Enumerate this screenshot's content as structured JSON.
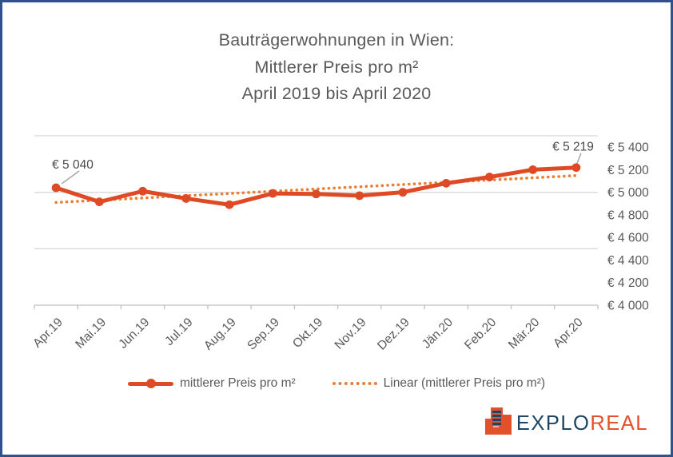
{
  "title": {
    "lines": [
      "Bauträgerwohnungen in Wien:",
      "Mittlerer Preis pro m²",
      "April 2019 bis April 2020"
    ]
  },
  "chart_data": {
    "type": "line",
    "title": "Bauträgerwohnungen in Wien: Mittlerer Preis pro m² April 2019 bis April 2020",
    "categories": [
      "Apr.19",
      "Mai.19",
      "Jun.19",
      "Jul.19",
      "Aug.19",
      "Sep.19",
      "Okt.19",
      "Nov.19",
      "Dez.19",
      "Jän.20",
      "Feb.20",
      "Mär.20",
      "Apr.20"
    ],
    "series": [
      {
        "name": "mittlerer Preis pro m²",
        "type": "line-with-markers",
        "color": "#DE4A26",
        "values": [
          5040,
          4915,
          5010,
          4945,
          4890,
          4990,
          4985,
          4970,
          5000,
          5080,
          5135,
          5200,
          5219
        ]
      },
      {
        "name": "Linear (mittlerer Preis pro m²)",
        "type": "linear-trendline-dotted",
        "color": "#ED7D31",
        "endpoint_values": [
          4910,
          5148
        ]
      }
    ],
    "annotations": [
      {
        "category": "Apr.19",
        "label": "€ 5 040",
        "align": "left"
      },
      {
        "category": "Apr.20",
        "label": "€ 5 219",
        "align": "right"
      }
    ],
    "y_axis": {
      "side": "right",
      "min": 4000,
      "max": 5500,
      "tick_labels": [
        "€ 5 400",
        "€ 5 200",
        "€ 5 000",
        "€ 4 800",
        "€ 4 600",
        "€ 4 400",
        "€ 4 200",
        "€ 4 000"
      ],
      "tick_values": [
        5400,
        5200,
        5000,
        4800,
        4600,
        4400,
        4200,
        4000
      ],
      "gridline_values": [
        5500,
        5000,
        4500
      ],
      "axis_value": 4000
    },
    "x_axis": {
      "label_rotation_deg": -45
    },
    "grid": true,
    "legend_position": "bottom"
  },
  "legend": {
    "items": [
      {
        "label": "mittlerer Preis pro m²",
        "marker": "solid-line-with-dot",
        "color": "#DE4A26"
      },
      {
        "label": "Linear (mittlerer Preis pro m²)",
        "marker": "dotted-line",
        "color": "#ED7D31"
      }
    ]
  },
  "logo": {
    "text_primary": "EXPLO",
    "text_secondary": "REAL",
    "primary_color": "#1C4663",
    "secondary_color": "#E2502C"
  },
  "colors": {
    "border": "#2E5191",
    "background": "#FFFFFF",
    "title_text": "#595959",
    "axis_text": "#595959",
    "data_label_text": "#4A4A4A",
    "gridline": "#D9D9D9",
    "axis_line": "#BFBFBF",
    "tick_mark": "#BFBFBF",
    "leader_line": "#A6A6A6",
    "series_line": "#DE4A26",
    "trend_line": "#ED7D31"
  }
}
